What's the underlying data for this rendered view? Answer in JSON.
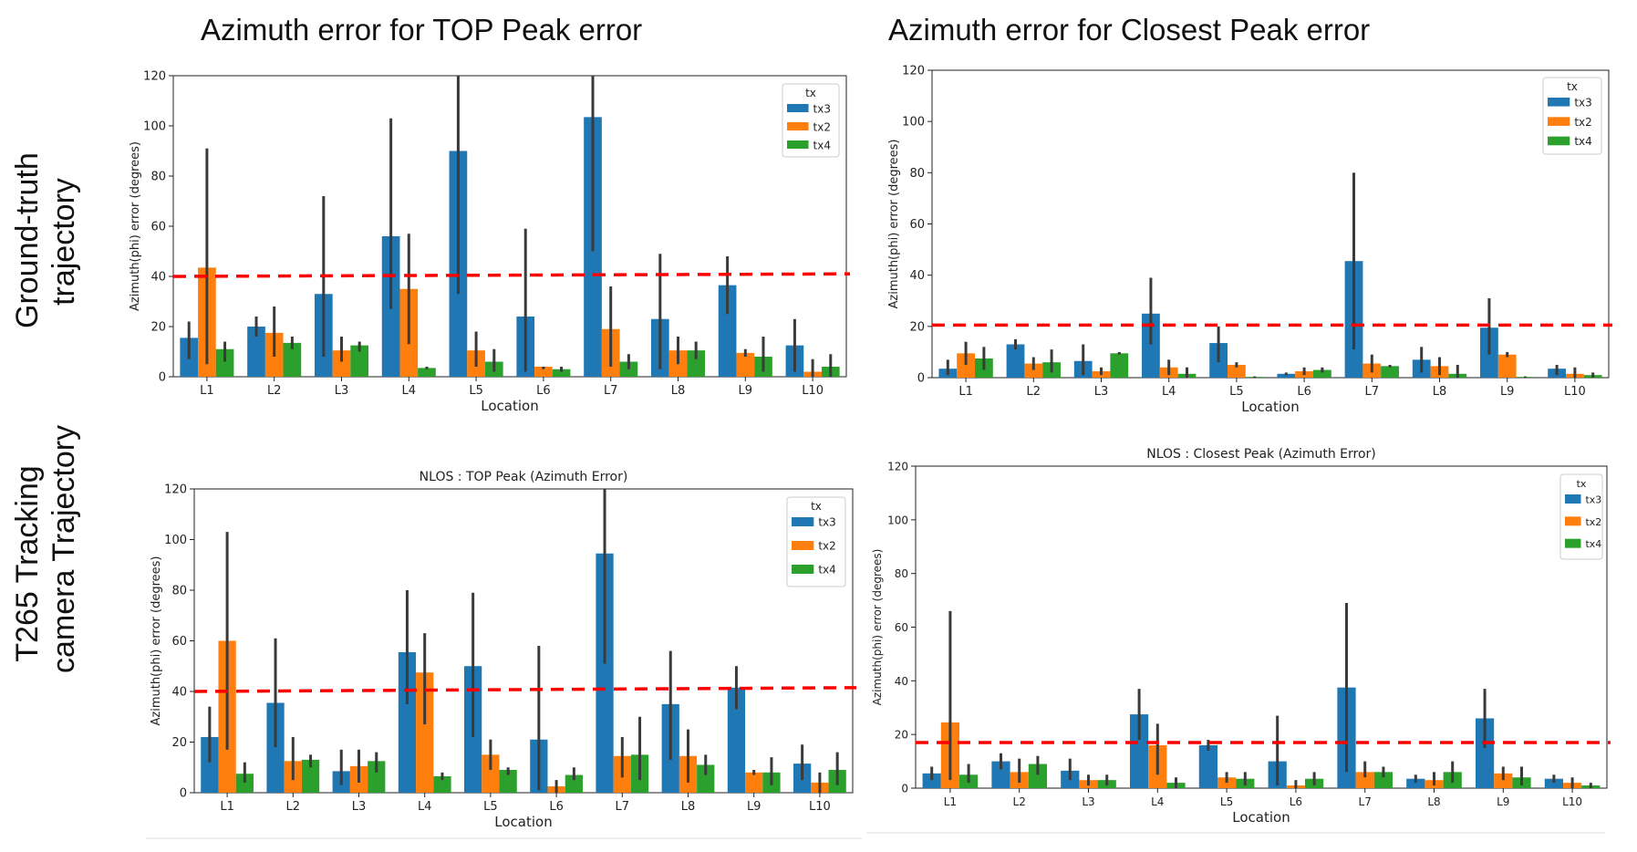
{
  "column_titles": [
    "Azimuth error for TOP Peak error",
    "Azimuth error for Closest Peak error"
  ],
  "row_labels": [
    [
      "Ground-truth",
      "trajectory"
    ],
    [
      "T265 Tracking",
      "camera Trajectory"
    ]
  ],
  "colors": {
    "tx3": "#1f77b4",
    "tx2": "#ff7f0e",
    "tx4": "#2ca02c",
    "threshold": "#ff0000",
    "errbar": "#3a3a3a"
  },
  "chart_data": [
    {
      "type": "bar",
      "title": "",
      "xlabel": "Location",
      "ylabel": "Azimuth(phi) error (degrees)",
      "ylim": [
        0,
        120
      ],
      "yticks": [
        0,
        20,
        40,
        60,
        80,
        100,
        120
      ],
      "categories": [
        "L1",
        "L2",
        "L3",
        "L4",
        "L5",
        "L6",
        "L7",
        "L8",
        "L9",
        "L10"
      ],
      "legend_title": "tx",
      "legend_position": "top-right",
      "threshold": [
        40,
        41
      ],
      "series": [
        {
          "name": "tx3",
          "values": [
            15.5,
            20,
            33,
            56,
            90,
            24,
            103.5,
            23,
            36.5,
            12.5
          ],
          "ci": [
            [
              7,
              22
            ],
            [
              16,
              24
            ],
            [
              8,
              72
            ],
            [
              27,
              103
            ],
            [
              33,
              120
            ],
            [
              2,
              59
            ],
            [
              50,
              120
            ],
            [
              3,
              49
            ],
            [
              25,
              48
            ],
            [
              2,
              23
            ]
          ]
        },
        {
          "name": "tx2",
          "values": [
            43.5,
            17.5,
            10.5,
            35,
            10.5,
            4,
            19,
            10.5,
            9.5,
            2
          ],
          "ci": [
            [
              5,
              91
            ],
            [
              8,
              28
            ],
            [
              6,
              16
            ],
            [
              13,
              57
            ],
            [
              4,
              18
            ],
            [
              3,
              4
            ],
            [
              4,
              36
            ],
            [
              5,
              16
            ],
            [
              8,
              11
            ],
            [
              0,
              7
            ]
          ]
        },
        {
          "name": "tx4",
          "values": [
            11,
            13.5,
            12.5,
            3.5,
            6,
            3,
            6,
            10.5,
            8,
            4
          ],
          "ci": [
            [
              6,
              14
            ],
            [
              11,
              16
            ],
            [
              10,
              14
            ],
            [
              3,
              4
            ],
            [
              2,
              11
            ],
            [
              2,
              4
            ],
            [
              3,
              9
            ],
            [
              7,
              14
            ],
            [
              2,
              16
            ],
            [
              0,
              9
            ]
          ]
        }
      ]
    },
    {
      "type": "bar",
      "title": "",
      "xlabel": "Location",
      "ylabel": "Azimuth(phi) error (degrees)",
      "ylim": [
        0,
        120
      ],
      "yticks": [
        0,
        20,
        40,
        60,
        80,
        100,
        120
      ],
      "categories": [
        "L1",
        "L2",
        "L3",
        "L4",
        "L5",
        "L6",
        "L7",
        "L8",
        "L9",
        "L10"
      ],
      "legend_title": "tx",
      "legend_position": "top-right",
      "threshold": [
        20.5,
        20.5
      ],
      "series": [
        {
          "name": "tx3",
          "values": [
            3.5,
            13,
            6.5,
            25,
            13.5,
            1.5,
            45.5,
            7,
            19.5,
            3.5
          ],
          "ci": [
            [
              1,
              7
            ],
            [
              11,
              15
            ],
            [
              1,
              13
            ],
            [
              13,
              39
            ],
            [
              6,
              20
            ],
            [
              1,
              2
            ],
            [
              11,
              80
            ],
            [
              2,
              12
            ],
            [
              9,
              31
            ],
            [
              1,
              5
            ]
          ]
        },
        {
          "name": "tx2",
          "values": [
            9.5,
            5.5,
            2.5,
            4,
            5,
            2.5,
            5.5,
            4.5,
            9,
            1.5
          ],
          "ci": [
            [
              5,
              14
            ],
            [
              3,
              8
            ],
            [
              1,
              4
            ],
            [
              1,
              7
            ],
            [
              4,
              6
            ],
            [
              1,
              4
            ],
            [
              2,
              9
            ],
            [
              1,
              8
            ],
            [
              8,
              10
            ],
            [
              0,
              4
            ]
          ]
        },
        {
          "name": "tx4",
          "values": [
            7.5,
            6,
            9.5,
            1.5,
            0.3,
            3,
            4.5,
            1.5,
            0.3,
            1
          ],
          "ci": [
            [
              3,
              12
            ],
            [
              2,
              11
            ],
            [
              9,
              10
            ],
            [
              0,
              4
            ],
            [
              0,
              0.5
            ],
            [
              2,
              4
            ],
            [
              4,
              5
            ],
            [
              0,
              5
            ],
            [
              0,
              0.5
            ],
            [
              0,
              2
            ]
          ]
        }
      ]
    },
    {
      "type": "bar",
      "title": "NLOS : TOP Peak (Azimuth Error)",
      "xlabel": "Location",
      "ylabel": "Azimuth(phi) error (degrees)",
      "ylim": [
        0,
        120
      ],
      "yticks": [
        0,
        20,
        40,
        60,
        80,
        100,
        120
      ],
      "categories": [
        "L1",
        "L2",
        "L3",
        "L4",
        "L5",
        "L6",
        "L7",
        "L8",
        "L9",
        "L10"
      ],
      "legend_title": "tx",
      "legend_position": "top-right",
      "threshold": [
        40,
        41.5
      ],
      "series": [
        {
          "name": "tx3",
          "values": [
            22,
            35.5,
            8.5,
            55.5,
            50,
            21,
            94.5,
            35,
            41.5,
            11.5
          ],
          "ci": [
            [
              12,
              34
            ],
            [
              18,
              61
            ],
            [
              3,
              17
            ],
            [
              35,
              80
            ],
            [
              22,
              79
            ],
            [
              1,
              58
            ],
            [
              51,
              120
            ],
            [
              13,
              56
            ],
            [
              33,
              50
            ],
            [
              5,
              19
            ]
          ]
        },
        {
          "name": "tx2",
          "values": [
            60,
            12.5,
            10.5,
            47.5,
            15,
            2.5,
            14.5,
            14.5,
            8,
            4
          ],
          "ci": [
            [
              17,
              103
            ],
            [
              5,
              22
            ],
            [
              4,
              17
            ],
            [
              27,
              63
            ],
            [
              9,
              21
            ],
            [
              0,
              5
            ],
            [
              6,
              22
            ],
            [
              4,
              25
            ],
            [
              7,
              9
            ],
            [
              0,
              8
            ]
          ]
        },
        {
          "name": "tx4",
          "values": [
            7.5,
            13,
            12.5,
            6.5,
            9,
            7,
            15,
            11,
            8,
            9
          ],
          "ci": [
            [
              4,
              12
            ],
            [
              10,
              15
            ],
            [
              8,
              16
            ],
            [
              5,
              8
            ],
            [
              7,
              10
            ],
            [
              5,
              10
            ],
            [
              5,
              30
            ],
            [
              7,
              15
            ],
            [
              3,
              14
            ],
            [
              3,
              16
            ]
          ]
        }
      ]
    },
    {
      "type": "bar",
      "title": "NLOS : Closest Peak (Azimuth Error)",
      "xlabel": "Location",
      "ylabel": "Azimuth(phi) error (degrees)",
      "ylim": [
        0,
        120
      ],
      "yticks": [
        0,
        20,
        40,
        60,
        80,
        100,
        120
      ],
      "categories": [
        "L1",
        "L2",
        "L3",
        "L4",
        "L5",
        "L6",
        "L7",
        "L8",
        "L9",
        "L10"
      ],
      "legend_title": "tx",
      "legend_position": "top-right",
      "threshold": [
        17,
        17
      ],
      "series": [
        {
          "name": "tx3",
          "values": [
            5.5,
            10,
            6.5,
            27.5,
            16,
            10,
            37.5,
            3.5,
            26,
            3.5
          ],
          "ci": [
            [
              3,
              8
            ],
            [
              7,
              13
            ],
            [
              3,
              11
            ],
            [
              18,
              37
            ],
            [
              14,
              18
            ],
            [
              1,
              27
            ],
            [
              6,
              69
            ],
            [
              2,
              5
            ],
            [
              15,
              37
            ],
            [
              2,
              5
            ]
          ]
        },
        {
          "name": "tx2",
          "values": [
            24.5,
            6,
            3,
            16,
            4,
            1,
            6,
            3,
            5.5,
            2
          ],
          "ci": [
            [
              3,
              66
            ],
            [
              2,
              11
            ],
            [
              1,
              5
            ],
            [
              5,
              24
            ],
            [
              2,
              6
            ],
            [
              0,
              3
            ],
            [
              4,
              10
            ],
            [
              1,
              6
            ],
            [
              3,
              8
            ],
            [
              0,
              4
            ]
          ]
        },
        {
          "name": "tx4",
          "values": [
            5,
            9,
            3,
            2,
            3.5,
            3.5,
            6,
            6,
            4,
            1
          ],
          "ci": [
            [
              2,
              9
            ],
            [
              5,
              12
            ],
            [
              1,
              5
            ],
            [
              0,
              4
            ],
            [
              1,
              6
            ],
            [
              1,
              6
            ],
            [
              4,
              8
            ],
            [
              2,
              10
            ],
            [
              1,
              8
            ],
            [
              0,
              2
            ]
          ]
        }
      ]
    }
  ]
}
